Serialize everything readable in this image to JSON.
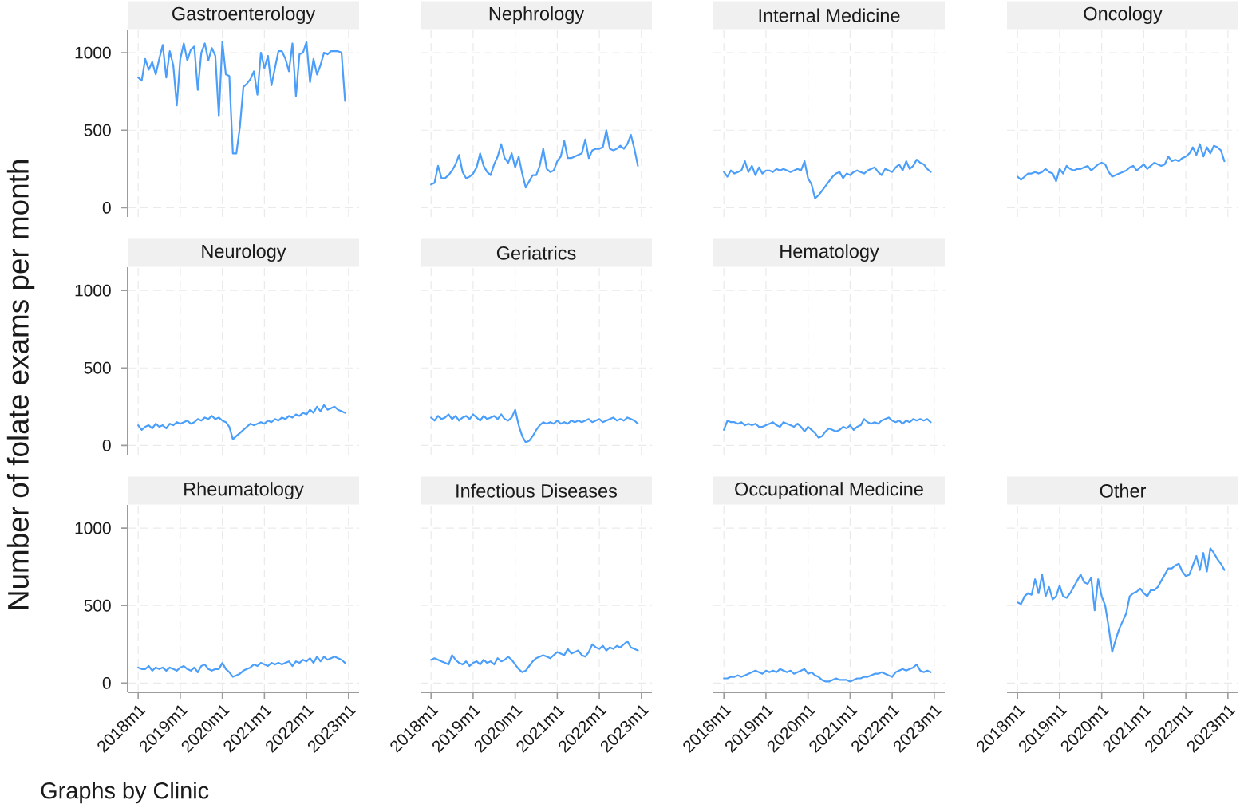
{
  "chart_data": [
    {
      "type": "line",
      "title": "Gastroenterology",
      "tick_labels": "y",
      "grid": true,
      "color": "#4b9ffa",
      "xlim": [
        "2017-10",
        "2023-04"
      ],
      "ylim": [
        -60,
        1150
      ],
      "yticks": [
        0,
        500,
        1000
      ],
      "xticks": [
        {
          "value": "2018-01",
          "label": null
        },
        {
          "value": "2019-01",
          "label": null
        },
        {
          "value": "2020-01",
          "label": null
        },
        {
          "value": "2021-01",
          "label": null
        },
        {
          "value": "2022-01",
          "label": null
        },
        {
          "value": "2023-01",
          "label": null
        }
      ],
      "x": [
        "2018-01",
        "2018-02",
        "2018-03",
        "2018-04",
        "2018-05",
        "2018-06",
        "2018-07",
        "2018-08",
        "2018-09",
        "2018-10",
        "2018-11",
        "2018-12",
        "2019-01",
        "2019-02",
        "2019-03",
        "2019-04",
        "2019-05",
        "2019-06",
        "2019-07",
        "2019-08",
        "2019-09",
        "2019-10",
        "2019-11",
        "2019-12",
        "2020-01",
        "2020-02",
        "2020-03",
        "2020-04",
        "2020-05",
        "2020-06",
        "2020-07",
        "2020-08",
        "2020-09",
        "2020-10",
        "2020-11",
        "2020-12",
        "2021-01",
        "2021-02",
        "2021-03",
        "2021-04",
        "2021-05",
        "2021-06",
        "2021-07",
        "2021-08",
        "2021-09",
        "2021-10",
        "2021-11",
        "2021-12",
        "2022-01",
        "2022-02",
        "2022-03",
        "2022-04",
        "2022-05",
        "2022-06",
        "2022-07",
        "2022-08",
        "2022-09",
        "2022-10",
        "2022-11",
        "2022-12"
      ],
      "values": [
        840,
        820,
        960,
        890,
        940,
        860,
        960,
        1050,
        840,
        1010,
        920,
        660,
        960,
        1060,
        950,
        1020,
        1040,
        760,
        1000,
        1060,
        950,
        1030,
        980,
        590,
        1070,
        860,
        850,
        350,
        350,
        520,
        780,
        800,
        830,
        880,
        730,
        1000,
        900,
        980,
        790,
        900,
        1010,
        1010,
        960,
        880,
        1060,
        720,
        990,
        1000,
        1070,
        810,
        960,
        860,
        920,
        1000,
        990,
        1010,
        1010,
        1010,
        1000,
        690
      ]
    },
    {
      "type": "line",
      "title": "Nephrology",
      "tick_labels": false,
      "grid": true,
      "color": "#4b9ffa",
      "xlim": [
        "2017-10",
        "2023-04"
      ],
      "ylim": [
        -60,
        1150
      ],
      "yticks": [
        0,
        500,
        1000
      ],
      "xticks": [
        {
          "value": "2018-01",
          "label": null
        },
        {
          "value": "2019-01",
          "label": null
        },
        {
          "value": "2020-01",
          "label": null
        },
        {
          "value": "2021-01",
          "label": null
        },
        {
          "value": "2022-01",
          "label": null
        },
        {
          "value": "2023-01",
          "label": null
        }
      ],
      "x": [
        "2018-01",
        "2018-02",
        "2018-03",
        "2018-04",
        "2018-05",
        "2018-06",
        "2018-07",
        "2018-08",
        "2018-09",
        "2018-10",
        "2018-11",
        "2018-12",
        "2019-01",
        "2019-02",
        "2019-03",
        "2019-04",
        "2019-05",
        "2019-06",
        "2019-07",
        "2019-08",
        "2019-09",
        "2019-10",
        "2019-11",
        "2019-12",
        "2020-01",
        "2020-02",
        "2020-03",
        "2020-04",
        "2020-05",
        "2020-06",
        "2020-07",
        "2020-08",
        "2020-09",
        "2020-10",
        "2020-11",
        "2020-12",
        "2021-01",
        "2021-02",
        "2021-03",
        "2021-04",
        "2021-05",
        "2021-06",
        "2021-07",
        "2021-08",
        "2021-09",
        "2021-10",
        "2021-11",
        "2021-12",
        "2022-01",
        "2022-02",
        "2022-03",
        "2022-04",
        "2022-05",
        "2022-06",
        "2022-07",
        "2022-08",
        "2022-09",
        "2022-10",
        "2022-11",
        "2022-12"
      ],
      "values": [
        150,
        160,
        270,
        190,
        190,
        210,
        240,
        280,
        340,
        230,
        190,
        200,
        220,
        260,
        350,
        270,
        230,
        210,
        280,
        330,
        410,
        320,
        290,
        350,
        260,
        330,
        220,
        130,
        170,
        210,
        210,
        270,
        380,
        250,
        230,
        240,
        300,
        330,
        430,
        320,
        320,
        330,
        340,
        350,
        440,
        320,
        370,
        380,
        380,
        390,
        500,
        380,
        370,
        380,
        400,
        380,
        410,
        470,
        380,
        270
      ]
    },
    {
      "type": "line",
      "title": "Internal Medicine",
      "tick_labels": false,
      "grid": true,
      "color": "#4b9ffa",
      "xlim": [
        "2017-10",
        "2023-04"
      ],
      "ylim": [
        -60,
        1150
      ],
      "yticks": [
        0,
        500,
        1000
      ],
      "xticks": [
        {
          "value": "2018-01",
          "label": null
        },
        {
          "value": "2019-01",
          "label": null
        },
        {
          "value": "2020-01",
          "label": null
        },
        {
          "value": "2021-01",
          "label": null
        },
        {
          "value": "2022-01",
          "label": null
        },
        {
          "value": "2023-01",
          "label": null
        }
      ],
      "x": [
        "2018-01",
        "2018-02",
        "2018-03",
        "2018-04",
        "2018-05",
        "2018-06",
        "2018-07",
        "2018-08",
        "2018-09",
        "2018-10",
        "2018-11",
        "2018-12",
        "2019-01",
        "2019-02",
        "2019-03",
        "2019-04",
        "2019-05",
        "2019-06",
        "2019-07",
        "2019-08",
        "2019-09",
        "2019-10",
        "2019-11",
        "2019-12",
        "2020-01",
        "2020-02",
        "2020-03",
        "2020-04",
        "2020-05",
        "2020-06",
        "2020-07",
        "2020-08",
        "2020-09",
        "2020-10",
        "2020-11",
        "2020-12",
        "2021-01",
        "2021-02",
        "2021-03",
        "2021-04",
        "2021-05",
        "2021-06",
        "2021-07",
        "2021-08",
        "2021-09",
        "2021-10",
        "2021-11",
        "2021-12",
        "2022-01",
        "2022-02",
        "2022-03",
        "2022-04",
        "2022-05",
        "2022-06",
        "2022-07",
        "2022-08",
        "2022-09",
        "2022-10",
        "2022-11",
        "2022-12"
      ],
      "values": [
        230,
        200,
        240,
        220,
        230,
        240,
        300,
        230,
        270,
        210,
        260,
        220,
        240,
        240,
        230,
        250,
        240,
        250,
        240,
        230,
        240,
        250,
        240,
        300,
        190,
        150,
        60,
        80,
        110,
        140,
        170,
        200,
        220,
        230,
        190,
        220,
        210,
        230,
        240,
        230,
        220,
        240,
        250,
        260,
        230,
        210,
        250,
        240,
        230,
        260,
        280,
        240,
        300,
        250,
        270,
        310,
        290,
        280,
        250,
        230
      ]
    },
    {
      "type": "line",
      "title": "Oncology",
      "tick_labels": false,
      "grid": true,
      "color": "#4b9ffa",
      "xlim": [
        "2017-10",
        "2023-04"
      ],
      "ylim": [
        -60,
        1150
      ],
      "yticks": [
        0,
        500,
        1000
      ],
      "xticks": [
        {
          "value": "2018-01",
          "label": null
        },
        {
          "value": "2019-01",
          "label": null
        },
        {
          "value": "2020-01",
          "label": null
        },
        {
          "value": "2021-01",
          "label": null
        },
        {
          "value": "2022-01",
          "label": null
        },
        {
          "value": "2023-01",
          "label": null
        }
      ],
      "x": [
        "2018-01",
        "2018-02",
        "2018-03",
        "2018-04",
        "2018-05",
        "2018-06",
        "2018-07",
        "2018-08",
        "2018-09",
        "2018-10",
        "2018-11",
        "2018-12",
        "2019-01",
        "2019-02",
        "2019-03",
        "2019-04",
        "2019-05",
        "2019-06",
        "2019-07",
        "2019-08",
        "2019-09",
        "2019-10",
        "2019-11",
        "2019-12",
        "2020-01",
        "2020-02",
        "2020-03",
        "2020-04",
        "2020-05",
        "2020-06",
        "2020-07",
        "2020-08",
        "2020-09",
        "2020-10",
        "2020-11",
        "2020-12",
        "2021-01",
        "2021-02",
        "2021-03",
        "2021-04",
        "2021-05",
        "2021-06",
        "2021-07",
        "2021-08",
        "2021-09",
        "2021-10",
        "2021-11",
        "2021-12",
        "2022-01",
        "2022-02",
        "2022-03",
        "2022-04",
        "2022-05",
        "2022-06",
        "2022-07",
        "2022-08",
        "2022-09",
        "2022-10",
        "2022-11",
        "2022-12"
      ],
      "values": [
        200,
        180,
        200,
        220,
        220,
        230,
        220,
        230,
        250,
        230,
        220,
        170,
        250,
        220,
        270,
        250,
        240,
        250,
        250,
        260,
        270,
        240,
        260,
        280,
        290,
        280,
        230,
        200,
        210,
        220,
        230,
        240,
        260,
        270,
        240,
        260,
        280,
        250,
        270,
        290,
        280,
        270,
        280,
        330,
        300,
        310,
        300,
        320,
        330,
        350,
        390,
        340,
        410,
        330,
        390,
        350,
        400,
        390,
        370,
        300
      ]
    },
    {
      "type": "line",
      "title": "Neurology",
      "ylabel": "Number of folate exams per month",
      "tick_labels": "y",
      "grid": true,
      "color": "#4b9ffa",
      "xlim": [
        "2017-10",
        "2023-04"
      ],
      "ylim": [
        -60,
        1150
      ],
      "yticks": [
        0,
        500,
        1000
      ],
      "xticks": [
        {
          "value": "2018-01",
          "label": null
        },
        {
          "value": "2019-01",
          "label": null
        },
        {
          "value": "2020-01",
          "label": null
        },
        {
          "value": "2021-01",
          "label": null
        },
        {
          "value": "2022-01",
          "label": null
        },
        {
          "value": "2023-01",
          "label": null
        }
      ],
      "x": [
        "2018-01",
        "2018-02",
        "2018-03",
        "2018-04",
        "2018-05",
        "2018-06",
        "2018-07",
        "2018-08",
        "2018-09",
        "2018-10",
        "2018-11",
        "2018-12",
        "2019-01",
        "2019-02",
        "2019-03",
        "2019-04",
        "2019-05",
        "2019-06",
        "2019-07",
        "2019-08",
        "2019-09",
        "2019-10",
        "2019-11",
        "2019-12",
        "2020-01",
        "2020-02",
        "2020-03",
        "2020-04",
        "2020-05",
        "2020-06",
        "2020-07",
        "2020-08",
        "2020-09",
        "2020-10",
        "2020-11",
        "2020-12",
        "2021-01",
        "2021-02",
        "2021-03",
        "2021-04",
        "2021-05",
        "2021-06",
        "2021-07",
        "2021-08",
        "2021-09",
        "2021-10",
        "2021-11",
        "2021-12",
        "2022-01",
        "2022-02",
        "2022-03",
        "2022-04",
        "2022-05",
        "2022-06",
        "2022-07",
        "2022-08",
        "2022-09",
        "2022-10",
        "2022-11",
        "2022-12"
      ],
      "values": [
        130,
        100,
        120,
        130,
        110,
        140,
        120,
        130,
        110,
        140,
        130,
        150,
        140,
        150,
        160,
        140,
        150,
        170,
        160,
        180,
        170,
        190,
        170,
        180,
        160,
        150,
        120,
        40,
        60,
        80,
        100,
        120,
        140,
        130,
        140,
        150,
        140,
        160,
        150,
        170,
        160,
        180,
        170,
        190,
        180,
        200,
        190,
        210,
        200,
        230,
        210,
        250,
        220,
        260,
        230,
        240,
        250,
        230,
        220,
        210
      ]
    },
    {
      "type": "line",
      "title": "Geriatrics",
      "tick_labels": false,
      "grid": true,
      "color": "#4b9ffa",
      "xlim": [
        "2017-10",
        "2023-04"
      ],
      "ylim": [
        -60,
        1150
      ],
      "yticks": [
        0,
        500,
        1000
      ],
      "xticks": [
        {
          "value": "2018-01",
          "label": null
        },
        {
          "value": "2019-01",
          "label": null
        },
        {
          "value": "2020-01",
          "label": null
        },
        {
          "value": "2021-01",
          "label": null
        },
        {
          "value": "2022-01",
          "label": null
        },
        {
          "value": "2023-01",
          "label": null
        }
      ],
      "x": [
        "2018-01",
        "2018-02",
        "2018-03",
        "2018-04",
        "2018-05",
        "2018-06",
        "2018-07",
        "2018-08",
        "2018-09",
        "2018-10",
        "2018-11",
        "2018-12",
        "2019-01",
        "2019-02",
        "2019-03",
        "2019-04",
        "2019-05",
        "2019-06",
        "2019-07",
        "2019-08",
        "2019-09",
        "2019-10",
        "2019-11",
        "2019-12",
        "2020-01",
        "2020-02",
        "2020-03",
        "2020-04",
        "2020-05",
        "2020-06",
        "2020-07",
        "2020-08",
        "2020-09",
        "2020-10",
        "2020-11",
        "2020-12",
        "2021-01",
        "2021-02",
        "2021-03",
        "2021-04",
        "2021-05",
        "2021-06",
        "2021-07",
        "2021-08",
        "2021-09",
        "2021-10",
        "2021-11",
        "2021-12",
        "2022-01",
        "2022-02",
        "2022-03",
        "2022-04",
        "2022-05",
        "2022-06",
        "2022-07",
        "2022-08",
        "2022-09",
        "2022-10",
        "2022-11",
        "2022-12"
      ],
      "values": [
        180,
        160,
        190,
        170,
        180,
        200,
        170,
        190,
        160,
        180,
        190,
        170,
        200,
        180,
        160,
        190,
        170,
        180,
        190,
        170,
        200,
        170,
        160,
        180,
        230,
        130,
        60,
        20,
        30,
        60,
        100,
        130,
        150,
        140,
        150,
        140,
        160,
        140,
        150,
        140,
        160,
        150,
        160,
        150,
        160,
        170,
        150,
        160,
        170,
        150,
        160,
        170,
        180,
        160,
        170,
        160,
        180,
        170,
        160,
        140
      ]
    },
    {
      "type": "line",
      "title": "Hematology",
      "tick_labels": false,
      "grid": true,
      "color": "#4b9ffa",
      "xlim": [
        "2017-10",
        "2023-04"
      ],
      "ylim": [
        -60,
        1150
      ],
      "yticks": [
        0,
        500,
        1000
      ],
      "xticks": [
        {
          "value": "2018-01",
          "label": null
        },
        {
          "value": "2019-01",
          "label": null
        },
        {
          "value": "2020-01",
          "label": null
        },
        {
          "value": "2021-01",
          "label": null
        },
        {
          "value": "2022-01",
          "label": null
        },
        {
          "value": "2023-01",
          "label": null
        }
      ],
      "x": [
        "2018-01",
        "2018-02",
        "2018-03",
        "2018-04",
        "2018-05",
        "2018-06",
        "2018-07",
        "2018-08",
        "2018-09",
        "2018-10",
        "2018-11",
        "2018-12",
        "2019-01",
        "2019-02",
        "2019-03",
        "2019-04",
        "2019-05",
        "2019-06",
        "2019-07",
        "2019-08",
        "2019-09",
        "2019-10",
        "2019-11",
        "2019-12",
        "2020-01",
        "2020-02",
        "2020-03",
        "2020-04",
        "2020-05",
        "2020-06",
        "2020-07",
        "2020-08",
        "2020-09",
        "2020-10",
        "2020-11",
        "2020-12",
        "2021-01",
        "2021-02",
        "2021-03",
        "2021-04",
        "2021-05",
        "2021-06",
        "2021-07",
        "2021-08",
        "2021-09",
        "2021-10",
        "2021-11",
        "2021-12",
        "2022-01",
        "2022-02",
        "2022-03",
        "2022-04",
        "2022-05",
        "2022-06",
        "2022-07",
        "2022-08",
        "2022-09",
        "2022-10",
        "2022-11",
        "2022-12"
      ],
      "values": [
        100,
        160,
        150,
        150,
        140,
        150,
        130,
        140,
        130,
        140,
        120,
        120,
        130,
        140,
        150,
        130,
        120,
        150,
        140,
        130,
        120,
        140,
        120,
        90,
        120,
        100,
        80,
        50,
        60,
        90,
        110,
        100,
        90,
        100,
        120,
        110,
        130,
        100,
        120,
        130,
        170,
        150,
        140,
        150,
        140,
        160,
        170,
        180,
        160,
        150,
        160,
        140,
        160,
        150,
        170,
        160,
        170,
        160,
        170,
        150
      ]
    },
    {
      "type": "line",
      "title": "Rheumatology",
      "annotations": [
        "Graphs by Clinic"
      ],
      "grid": true,
      "color": "#4b9ffa",
      "xlim": [
        "2017-10",
        "2023-04"
      ],
      "ylim": [
        -60,
        1150
      ],
      "yticks": [
        0,
        500,
        1000
      ],
      "xticks": [
        {
          "value": "2018-01",
          "label": "2018m1"
        },
        {
          "value": "2019-01",
          "label": "2019m1"
        },
        {
          "value": "2020-01",
          "label": "2020m1"
        },
        {
          "value": "2021-01",
          "label": "2021m1"
        },
        {
          "value": "2022-01",
          "label": "2022m1"
        },
        {
          "value": "2023-01",
          "label": "2023m1"
        }
      ],
      "x": [
        "2018-01",
        "2018-02",
        "2018-03",
        "2018-04",
        "2018-05",
        "2018-06",
        "2018-07",
        "2018-08",
        "2018-09",
        "2018-10",
        "2018-11",
        "2018-12",
        "2019-01",
        "2019-02",
        "2019-03",
        "2019-04",
        "2019-05",
        "2019-06",
        "2019-07",
        "2019-08",
        "2019-09",
        "2019-10",
        "2019-11",
        "2019-12",
        "2020-01",
        "2020-02",
        "2020-03",
        "2020-04",
        "2020-05",
        "2020-06",
        "2020-07",
        "2020-08",
        "2020-09",
        "2020-10",
        "2020-11",
        "2020-12",
        "2021-01",
        "2021-02",
        "2021-03",
        "2021-04",
        "2021-05",
        "2021-06",
        "2021-07",
        "2021-08",
        "2021-09",
        "2021-10",
        "2021-11",
        "2021-12",
        "2022-01",
        "2022-02",
        "2022-03",
        "2022-04",
        "2022-05",
        "2022-06",
        "2022-07",
        "2022-08",
        "2022-09",
        "2022-10",
        "2022-11",
        "2022-12"
      ],
      "values": [
        100,
        90,
        90,
        110,
        80,
        100,
        90,
        100,
        80,
        100,
        90,
        80,
        100,
        110,
        90,
        80,
        100,
        70,
        110,
        120,
        90,
        80,
        90,
        90,
        130,
        90,
        70,
        40,
        50,
        60,
        80,
        90,
        100,
        120,
        110,
        130,
        120,
        110,
        130,
        120,
        130,
        120,
        130,
        140,
        110,
        140,
        130,
        150,
        140,
        160,
        130,
        170,
        140,
        170,
        150,
        160,
        170,
        160,
        150,
        130
      ]
    },
    {
      "type": "line",
      "title": "Infectious Diseases",
      "tick_labels": "x",
      "grid": true,
      "color": "#4b9ffa",
      "xlim": [
        "2017-10",
        "2023-04"
      ],
      "ylim": [
        -60,
        1150
      ],
      "yticks": [
        0,
        500,
        1000
      ],
      "xticks": [
        {
          "value": "2018-01",
          "label": "2018m1"
        },
        {
          "value": "2019-01",
          "label": "2019m1"
        },
        {
          "value": "2020-01",
          "label": "2020m1"
        },
        {
          "value": "2021-01",
          "label": "2021m1"
        },
        {
          "value": "2022-01",
          "label": "2022m1"
        },
        {
          "value": "2023-01",
          "label": "2023m1"
        }
      ],
      "x": [
        "2018-01",
        "2018-02",
        "2018-03",
        "2018-04",
        "2018-05",
        "2018-06",
        "2018-07",
        "2018-08",
        "2018-09",
        "2018-10",
        "2018-11",
        "2018-12",
        "2019-01",
        "2019-02",
        "2019-03",
        "2019-04",
        "2019-05",
        "2019-06",
        "2019-07",
        "2019-08",
        "2019-09",
        "2019-10",
        "2019-11",
        "2019-12",
        "2020-01",
        "2020-02",
        "2020-03",
        "2020-04",
        "2020-05",
        "2020-06",
        "2020-07",
        "2020-08",
        "2020-09",
        "2020-10",
        "2020-11",
        "2020-12",
        "2021-01",
        "2021-02",
        "2021-03",
        "2021-04",
        "2021-05",
        "2021-06",
        "2021-07",
        "2021-08",
        "2021-09",
        "2021-10",
        "2021-11",
        "2021-12",
        "2022-01",
        "2022-02",
        "2022-03",
        "2022-04",
        "2022-05",
        "2022-06",
        "2022-07",
        "2022-08",
        "2022-09",
        "2022-10",
        "2022-11",
        "2022-12"
      ],
      "values": [
        150,
        160,
        150,
        140,
        130,
        120,
        180,
        150,
        130,
        120,
        140,
        110,
        130,
        140,
        120,
        150,
        130,
        140,
        120,
        160,
        140,
        150,
        170,
        150,
        120,
        90,
        70,
        80,
        110,
        140,
        160,
        170,
        180,
        170,
        160,
        180,
        200,
        190,
        180,
        220,
        190,
        200,
        210,
        180,
        170,
        200,
        250,
        230,
        220,
        240,
        210,
        230,
        220,
        240,
        230,
        250,
        270,
        230,
        220,
        210
      ]
    },
    {
      "type": "line",
      "title": "Occupational Medicine",
      "tick_labels": "x",
      "grid": true,
      "color": "#4b9ffa",
      "xlim": [
        "2017-10",
        "2023-04"
      ],
      "ylim": [
        -60,
        1150
      ],
      "yticks": [
        0,
        500,
        1000
      ],
      "xticks": [
        {
          "value": "2018-01",
          "label": "2018m1"
        },
        {
          "value": "2019-01",
          "label": "2019m1"
        },
        {
          "value": "2020-01",
          "label": "2020m1"
        },
        {
          "value": "2021-01",
          "label": "2021m1"
        },
        {
          "value": "2022-01",
          "label": "2022m1"
        },
        {
          "value": "2023-01",
          "label": "2023m1"
        }
      ],
      "x": [
        "2018-01",
        "2018-02",
        "2018-03",
        "2018-04",
        "2018-05",
        "2018-06",
        "2018-07",
        "2018-08",
        "2018-09",
        "2018-10",
        "2018-11",
        "2018-12",
        "2019-01",
        "2019-02",
        "2019-03",
        "2019-04",
        "2019-05",
        "2019-06",
        "2019-07",
        "2019-08",
        "2019-09",
        "2019-10",
        "2019-11",
        "2019-12",
        "2020-01",
        "2020-02",
        "2020-03",
        "2020-04",
        "2020-05",
        "2020-06",
        "2020-07",
        "2020-08",
        "2020-09",
        "2020-10",
        "2020-11",
        "2020-12",
        "2021-01",
        "2021-02",
        "2021-03",
        "2021-04",
        "2021-05",
        "2021-06",
        "2021-07",
        "2021-08",
        "2021-09",
        "2021-10",
        "2021-11",
        "2021-12",
        "2022-01",
        "2022-02",
        "2022-03",
        "2022-04",
        "2022-05",
        "2022-06",
        "2022-07",
        "2022-08",
        "2022-09",
        "2022-10",
        "2022-11",
        "2022-12"
      ],
      "values": [
        30,
        30,
        40,
        40,
        50,
        40,
        50,
        60,
        70,
        80,
        70,
        60,
        80,
        70,
        80,
        70,
        90,
        80,
        70,
        80,
        60,
        70,
        80,
        90,
        60,
        70,
        50,
        40,
        20,
        10,
        10,
        20,
        30,
        20,
        20,
        20,
        10,
        20,
        30,
        30,
        40,
        40,
        50,
        60,
        60,
        70,
        60,
        50,
        40,
        70,
        80,
        90,
        80,
        90,
        100,
        120,
        80,
        70,
        80,
        70
      ]
    },
    {
      "type": "line",
      "title": "Other",
      "tick_labels": "x",
      "grid": true,
      "color": "#4b9ffa",
      "xlim": [
        "2017-10",
        "2023-04"
      ],
      "ylim": [
        -60,
        1150
      ],
      "yticks": [
        0,
        500,
        1000
      ],
      "xticks": [
        {
          "value": "2018-01",
          "label": "2018m1"
        },
        {
          "value": "2019-01",
          "label": "2019m1"
        },
        {
          "value": "2020-01",
          "label": "2020m1"
        },
        {
          "value": "2021-01",
          "label": "2021m1"
        },
        {
          "value": "2022-01",
          "label": "2022m1"
        },
        {
          "value": "2023-01",
          "label": "2023m1"
        }
      ],
      "x": [
        "2018-01",
        "2018-02",
        "2018-03",
        "2018-04",
        "2018-05",
        "2018-06",
        "2018-07",
        "2018-08",
        "2018-09",
        "2018-10",
        "2018-11",
        "2018-12",
        "2019-01",
        "2019-02",
        "2019-03",
        "2019-04",
        "2019-05",
        "2019-06",
        "2019-07",
        "2019-08",
        "2019-09",
        "2019-10",
        "2019-11",
        "2019-12",
        "2020-01",
        "2020-02",
        "2020-03",
        "2020-04",
        "2020-05",
        "2020-06",
        "2020-07",
        "2020-08",
        "2020-09",
        "2020-10",
        "2020-11",
        "2020-12",
        "2021-01",
        "2021-02",
        "2021-03",
        "2021-04",
        "2021-05",
        "2021-06",
        "2021-07",
        "2021-08",
        "2021-09",
        "2021-10",
        "2021-11",
        "2021-12",
        "2022-01",
        "2022-02",
        "2022-03",
        "2022-04",
        "2022-05",
        "2022-06",
        "2022-07",
        "2022-08",
        "2022-09",
        "2022-10",
        "2022-11",
        "2022-12"
      ],
      "values": [
        520,
        510,
        560,
        580,
        570,
        670,
        580,
        700,
        560,
        620,
        540,
        560,
        630,
        560,
        550,
        580,
        620,
        660,
        700,
        650,
        640,
        680,
        470,
        670,
        560,
        500,
        360,
        200,
        280,
        350,
        400,
        450,
        560,
        580,
        590,
        610,
        580,
        560,
        600,
        600,
        620,
        660,
        700,
        740,
        740,
        760,
        770,
        720,
        690,
        700,
        760,
        820,
        730,
        840,
        720,
        870,
        840,
        800,
        770,
        730
      ]
    }
  ]
}
